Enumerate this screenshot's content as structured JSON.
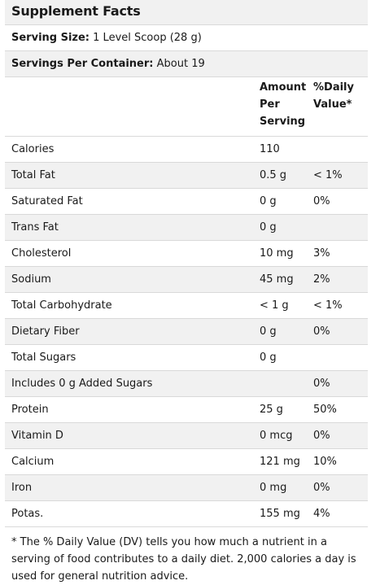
{
  "title": "Supplement Facts",
  "serving_size": {
    "label": "Serving Size:",
    "value": "1 Level Scoop (28 g)"
  },
  "servings_per_container": {
    "label": "Servings Per Container:",
    "value": "About 19"
  },
  "header": {
    "amount": [
      "Amount",
      "Per",
      "Serving"
    ],
    "daily_value": [
      "%Daily",
      "Value*"
    ]
  },
  "nutrients": [
    {
      "name": "Calories",
      "amount": "110",
      "dv": ""
    },
    {
      "name": "Total Fat",
      "amount": "0.5 g",
      "dv": "< 1%"
    },
    {
      "name": "Saturated Fat",
      "amount": "0 g",
      "dv": "0%"
    },
    {
      "name": "Trans Fat",
      "amount": "0 g",
      "dv": ""
    },
    {
      "name": "Cholesterol",
      "amount": "10 mg",
      "dv": "3%"
    },
    {
      "name": "Sodium",
      "amount": "45 mg",
      "dv": "2%"
    },
    {
      "name": "Total Carbohydrate",
      "amount": "< 1 g",
      "dv": "< 1%"
    },
    {
      "name": "Dietary Fiber",
      "amount": "0 g",
      "dv": "0%"
    },
    {
      "name": "Total Sugars",
      "amount": "0 g",
      "dv": ""
    },
    {
      "name": "Includes 0 g Added Sugars",
      "amount": "",
      "dv": "0%"
    },
    {
      "name": "Protein",
      "amount": "25 g",
      "dv": "50%"
    },
    {
      "name": "Vitamin D",
      "amount": "0 mcg",
      "dv": "0%"
    },
    {
      "name": "Calcium",
      "amount": "121 mg",
      "dv": "10%"
    },
    {
      "name": "Iron",
      "amount": "0 mg",
      "dv": "0%"
    },
    {
      "name": "Potas.",
      "amount": "155 mg",
      "dv": "4%"
    }
  ],
  "footnote": "* The % Daily Value (DV) tells you how much a nutrient in a serving of food contributes to a daily diet. 2,000 calories a day is used for general nutrition advice."
}
